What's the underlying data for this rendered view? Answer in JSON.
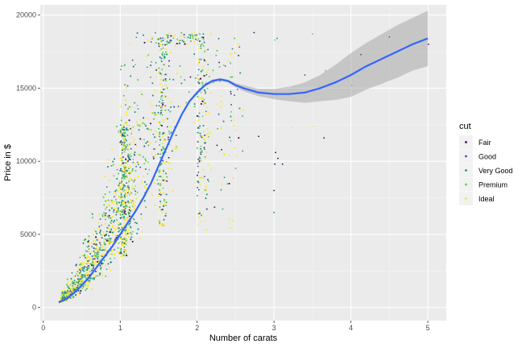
{
  "chart_data": {
    "type": "scatter",
    "title": "",
    "xlabel": "Number of carats",
    "ylabel": "Price in $",
    "xlim": [
      -0.04,
      5.24
    ],
    "ylim": [
      -900,
      20700
    ],
    "x_ticks": [
      0,
      1,
      2,
      3,
      4,
      5
    ],
    "y_ticks": [
      0,
      5000,
      10000,
      15000,
      20000
    ],
    "x_tick_labels": [
      "0",
      "1",
      "2",
      "3",
      "4",
      "5"
    ],
    "y_tick_labels": [
      "0",
      "5000",
      "10000",
      "15000",
      "20000"
    ],
    "grid": true,
    "legend": {
      "title": "cut",
      "position": "right",
      "entries": [
        "Fair",
        "Good",
        "Very Good",
        "Premium",
        "Ideal"
      ]
    },
    "colors": {
      "Fair": "#440154",
      "Good": "#3b528b",
      "Very Good": "#21908c",
      "Premium": "#5dc863",
      "Ideal": "#fde725",
      "smooth": "#3366ff",
      "ribbon": "#999999",
      "panel": "#ebebeb"
    },
    "smooth_curve": {
      "x": [
        0.2,
        0.3,
        0.4,
        0.5,
        0.6,
        0.7,
        0.8,
        0.9,
        1.0,
        1.1,
        1.2,
        1.3,
        1.4,
        1.5,
        1.6,
        1.7,
        1.8,
        1.9,
        2.0,
        2.1,
        2.2,
        2.3,
        2.4,
        2.5,
        2.6,
        2.8,
        3.0,
        3.2,
        3.4,
        3.6,
        3.8,
        4.0,
        4.2,
        4.4,
        4.6,
        4.8,
        5.0
      ],
      "y": [
        350,
        600,
        1000,
        1500,
        2100,
        2800,
        3500,
        4200,
        5000,
        5800,
        6600,
        7500,
        8500,
        9700,
        10900,
        12100,
        13200,
        14100,
        14700,
        15200,
        15500,
        15600,
        15500,
        15200,
        15000,
        14700,
        14600,
        14600,
        14700,
        15000,
        15400,
        15900,
        16500,
        17000,
        17500,
        18000,
        18400
      ],
      "upper": [
        450,
        700,
        1100,
        1600,
        2200,
        2900,
        3600,
        4300,
        5100,
        5900,
        6700,
        7600,
        8600,
        9800,
        11000,
        12200,
        13300,
        14200,
        14800,
        15300,
        15600,
        15700,
        15600,
        15350,
        15200,
        14950,
        14950,
        15100,
        15400,
        15900,
        16600,
        17400,
        18100,
        18700,
        19300,
        19800,
        20300
      ],
      "lower": [
        250,
        500,
        900,
        1400,
        2000,
        2700,
        3400,
        4100,
        4900,
        5700,
        6500,
        7400,
        8400,
        9600,
        10800,
        12000,
        13100,
        14000,
        14600,
        15100,
        15400,
        15500,
        15400,
        15050,
        14800,
        14450,
        14250,
        14100,
        14000,
        14100,
        14200,
        14400,
        14900,
        15300,
        15700,
        16200,
        16500
      ]
    },
    "outlier_points": [
      {
        "x": 3.01,
        "y": 18300,
        "cut": "Premium"
      },
      {
        "x": 3.04,
        "y": 18400,
        "cut": "Very Good"
      },
      {
        "x": 3.24,
        "y": 12300,
        "cut": "Ideal"
      },
      {
        "x": 3.4,
        "y": 15900,
        "cut": "Good"
      },
      {
        "x": 3.5,
        "y": 18700,
        "cut": "Premium"
      },
      {
        "x": 3.51,
        "y": 12400,
        "cut": "Ideal"
      },
      {
        "x": 3.65,
        "y": 11600,
        "cut": "Fair"
      },
      {
        "x": 3.67,
        "y": 16200,
        "cut": "Premium"
      },
      {
        "x": 4.0,
        "y": 15900,
        "cut": "Premium"
      },
      {
        "x": 4.01,
        "y": 15200,
        "cut": "Premium"
      },
      {
        "x": 4.13,
        "y": 17300,
        "cut": "Fair"
      },
      {
        "x": 4.5,
        "y": 18500,
        "cut": "Fair"
      },
      {
        "x": 5.01,
        "y": 18000,
        "cut": "Fair"
      },
      {
        "x": 3.01,
        "y": 9800,
        "cut": "Fair"
      },
      {
        "x": 3.02,
        "y": 10600,
        "cut": "Fair"
      },
      {
        "x": 3.0,
        "y": 8000,
        "cut": "Fair"
      },
      {
        "x": 3.0,
        "y": 6500,
        "cut": "Very Good"
      },
      {
        "x": 3.11,
        "y": 9800,
        "cut": "Fair"
      },
      {
        "x": 3.05,
        "y": 10200,
        "cut": "Fair"
      },
      {
        "x": 2.74,
        "y": 18800,
        "cut": "Fair"
      },
      {
        "x": 2.8,
        "y": 11700,
        "cut": "Fair"
      }
    ]
  }
}
